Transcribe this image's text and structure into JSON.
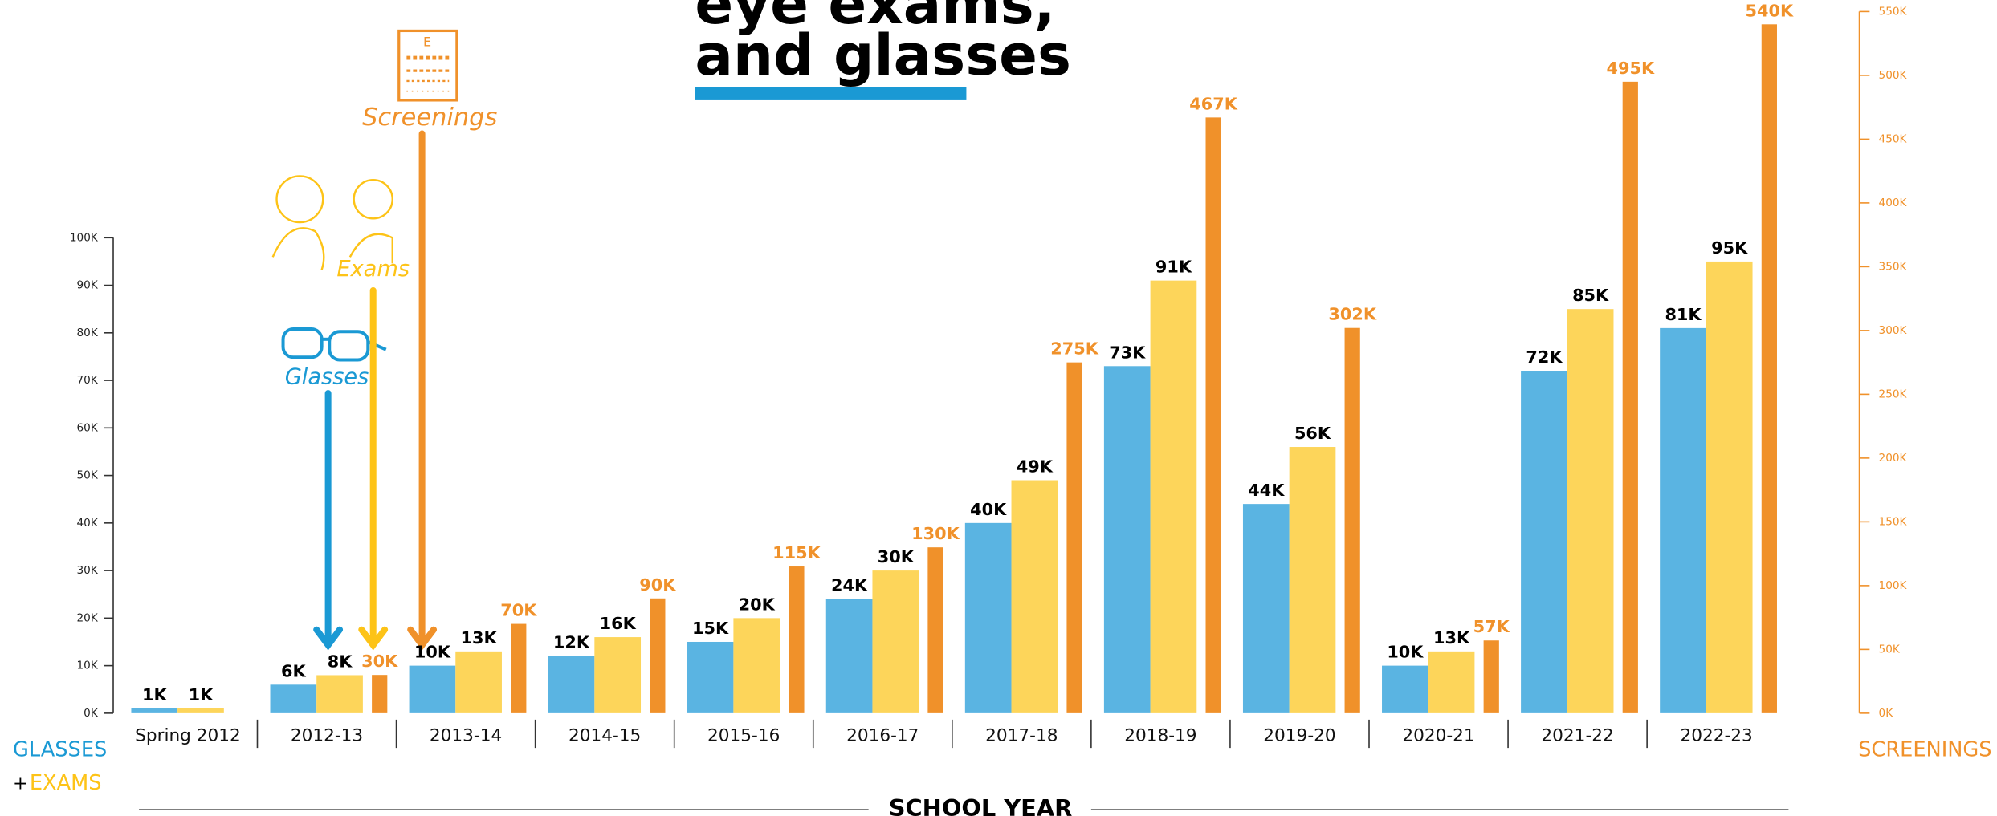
{
  "chart_data": {
    "type": "bar",
    "title": [
      "eye exams,",
      "and glasses"
    ],
    "x_label": "SCHOOL YEAR",
    "y_label": [
      "GLASSES",
      "+",
      "EXAMS"
    ],
    "y2_label": "SCREENINGS",
    "annotations": [
      "Screenings",
      "Exams",
      "Glasses"
    ],
    "categories": [
      "Spring 2012",
      "2012-13",
      "2013-14",
      "2014-15",
      "2015-16",
      "2016-17",
      "2017-18",
      "2018-19",
      "2019-20",
      "2020-21",
      "2021-22",
      "2022-23"
    ],
    "series": [
      {
        "name": "Glasses",
        "color": "#5ab4e2",
        "label_color": "#000000",
        "values": [
          1,
          6,
          10,
          12,
          15,
          24,
          40,
          73,
          44,
          10,
          72,
          81
        ],
        "value_labels": [
          "1K",
          "6K",
          "10K",
          "12K",
          "15K",
          "24K",
          "40K",
          "73K",
          "44K",
          "10K",
          "72K",
          "81K"
        ]
      },
      {
        "name": "Exams",
        "color": "#fdd55a",
        "label_color": "#000000",
        "values": [
          1,
          8,
          13,
          16,
          20,
          30,
          49,
          91,
          56,
          13,
          85,
          95
        ],
        "value_labels": [
          "1K",
          "8K",
          "13K",
          "16K",
          "20K",
          "30K",
          "49K",
          "91K",
          "56K",
          "13K",
          "85K",
          "95K"
        ]
      },
      {
        "name": "Screenings",
        "color": "#f0912a",
        "label_color": "#f0912a",
        "axis": "y2",
        "values": [
          null,
          30,
          70,
          90,
          115,
          130,
          275,
          467,
          302,
          57,
          495,
          540
        ],
        "value_labels": [
          null,
          "30K",
          "70K",
          "90K",
          "115K",
          "130K",
          "275K",
          "467K",
          "302K",
          "57K",
          "495K",
          "540K"
        ]
      }
    ],
    "ylim": [
      0,
      100
    ],
    "yticks": [
      {
        "value": 0,
        "label": "0K"
      },
      {
        "value": 10,
        "label": "10K"
      },
      {
        "value": 20,
        "label": "20K"
      },
      {
        "value": 30,
        "label": "30K"
      },
      {
        "value": 40,
        "label": "40K"
      },
      {
        "value": 50,
        "label": "50K"
      },
      {
        "value": 60,
        "label": "60K"
      },
      {
        "value": 70,
        "label": "70K"
      },
      {
        "value": 80,
        "label": "80K"
      },
      {
        "value": 90,
        "label": "90K"
      },
      {
        "value": 100,
        "label": "100K"
      }
    ],
    "y2lim": [
      0,
      550
    ],
    "y2ticks": [
      {
        "value": 0,
        "label": "0K"
      },
      {
        "value": 50,
        "label": "50K"
      },
      {
        "value": 100,
        "label": "100K"
      },
      {
        "value": 150,
        "label": "150K"
      },
      {
        "value": 200,
        "label": "200K"
      },
      {
        "value": 250,
        "label": "250K"
      },
      {
        "value": 300,
        "label": "300K"
      },
      {
        "value": 350,
        "label": "350K"
      },
      {
        "value": 400,
        "label": "400K"
      },
      {
        "value": 450,
        "label": "450K"
      },
      {
        "value": 500,
        "label": "500K"
      },
      {
        "value": 550,
        "label": "550K"
      }
    ],
    "y2_color": "#f0912a",
    "grid": false
  }
}
